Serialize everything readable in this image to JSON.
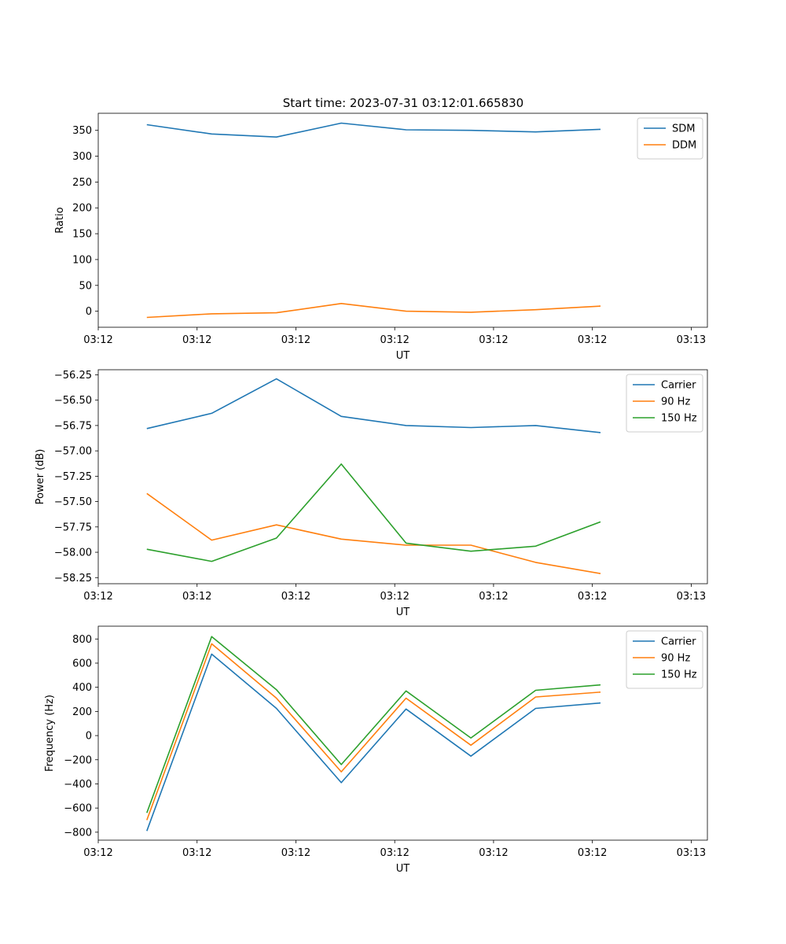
{
  "figure_title": "Start time: 2023-07-31 03:12:01.665830",
  "colors": {
    "blue": "#1f77b4",
    "orange": "#ff7f0e",
    "green": "#2ca02c"
  },
  "chart_data": [
    {
      "type": "line",
      "title": "Start time: 2023-07-31 03:12:01.665830",
      "xlabel": "UT",
      "ylabel": "Ratio",
      "x": [
        0,
        1,
        2,
        3,
        4,
        5,
        6,
        7
      ],
      "xlim": [
        -0.75,
        8.65
      ],
      "x_ticks": [
        -0.75,
        0.775,
        2.3,
        3.825,
        5.35,
        6.875,
        8.4
      ],
      "x_tick_labels": [
        "03:12",
        "03:12",
        "03:12",
        "03:12",
        "03:12",
        "03:12",
        "03:13"
      ],
      "ylim": [
        -31,
        383
      ],
      "y_ticks": [
        0,
        50,
        100,
        150,
        200,
        250,
        300,
        350
      ],
      "legend_position": "top-right",
      "series": [
        {
          "name": "SDM",
          "color": "#1f77b4",
          "values": [
            361,
            343,
            337,
            364,
            351,
            350,
            347,
            352
          ]
        },
        {
          "name": "DDM",
          "color": "#ff7f0e",
          "values": [
            -12,
            -5,
            -3,
            15,
            0,
            -2,
            3,
            10
          ]
        }
      ]
    },
    {
      "type": "line",
      "title": "",
      "xlabel": "UT",
      "ylabel": "Power (dB)",
      "x": [
        0,
        1,
        2,
        3,
        4,
        5,
        6,
        7
      ],
      "xlim": [
        -0.75,
        8.65
      ],
      "x_ticks": [
        -0.75,
        0.775,
        2.3,
        3.825,
        5.35,
        6.875,
        8.4
      ],
      "x_tick_labels": [
        "03:12",
        "03:12",
        "03:12",
        "03:12",
        "03:12",
        "03:12",
        "03:13"
      ],
      "ylim": [
        -58.31,
        -56.2
      ],
      "y_ticks": [
        -58.25,
        -58.0,
        -57.75,
        -57.5,
        -57.25,
        -57.0,
        -56.75,
        -56.5,
        -56.25
      ],
      "y_tick_labels": [
        "−58.25",
        "−58.00",
        "−57.75",
        "−57.50",
        "−57.25",
        "−57.00",
        "−56.75",
        "−56.50",
        "−56.25"
      ],
      "legend_position": "top-right",
      "series": [
        {
          "name": "Carrier",
          "color": "#1f77b4",
          "values": [
            -56.78,
            -56.63,
            -56.29,
            -56.66,
            -56.75,
            -56.77,
            -56.75,
            -56.82
          ]
        },
        {
          "name": "90 Hz",
          "color": "#ff7f0e",
          "values": [
            -57.42,
            -57.88,
            -57.73,
            -57.87,
            -57.93,
            -57.93,
            -58.1,
            -58.21
          ]
        },
        {
          "name": "150 Hz",
          "color": "#2ca02c",
          "values": [
            -57.97,
            -58.09,
            -57.86,
            -57.13,
            -57.91,
            -57.99,
            -57.94,
            -57.7
          ]
        }
      ]
    },
    {
      "type": "line",
      "title": "",
      "xlabel": "UT",
      "ylabel": "Frequency (Hz)",
      "x": [
        0,
        1,
        2,
        3,
        4,
        5,
        6,
        7
      ],
      "xlim": [
        -0.75,
        8.65
      ],
      "x_ticks": [
        -0.75,
        0.775,
        2.3,
        3.825,
        5.35,
        6.875,
        8.4
      ],
      "x_tick_labels": [
        "03:12",
        "03:12",
        "03:12",
        "03:12",
        "03:12",
        "03:12",
        "03:13"
      ],
      "ylim": [
        -866,
        906
      ],
      "y_ticks": [
        -800,
        -600,
        -400,
        -200,
        0,
        200,
        400,
        600,
        800
      ],
      "y_tick_labels": [
        "−800",
        "−600",
        "−400",
        "−200",
        "0",
        "200",
        "400",
        "600",
        "800"
      ],
      "legend_position": "top-right",
      "series": [
        {
          "name": "Carrier",
          "color": "#1f77b4",
          "values": [
            -790,
            675,
            225,
            -390,
            220,
            -170,
            225,
            270
          ]
        },
        {
          "name": "90 Hz",
          "color": "#ff7f0e",
          "values": [
            -700,
            760,
            310,
            -300,
            310,
            -80,
            320,
            360
          ]
        },
        {
          "name": "150 Hz",
          "color": "#2ca02c",
          "values": [
            -640,
            820,
            380,
            -240,
            370,
            -20,
            375,
            420
          ]
        }
      ]
    }
  ]
}
